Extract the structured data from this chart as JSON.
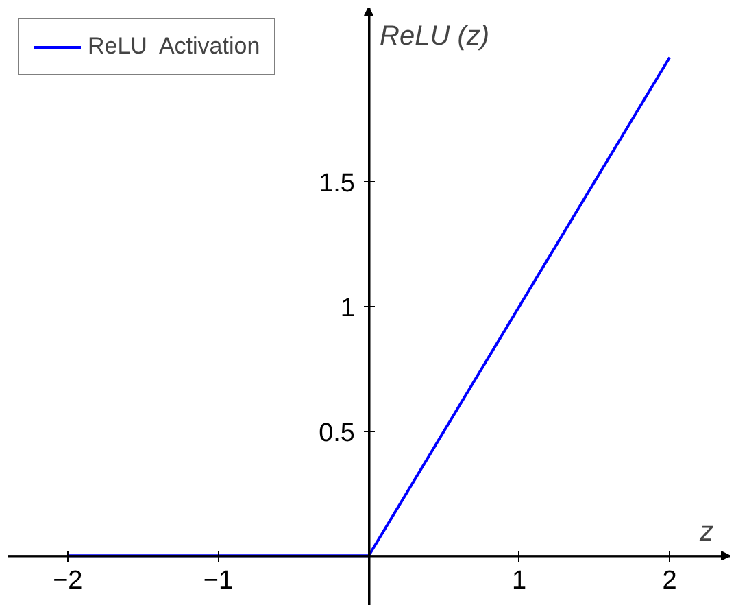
{
  "chart_data": {
    "type": "line",
    "xlabel": "z",
    "ylabel": "ReLU (z)",
    "x": [
      -2,
      0,
      2
    ],
    "series": [
      {
        "name": "ReLU  Activation",
        "color": "#0000ff",
        "values": [
          0,
          0,
          2
        ]
      }
    ],
    "xlim": [
      -2.4,
      2.4
    ],
    "ylim": [
      -0.2,
      2.2
    ],
    "xticks": [
      {
        "value": -2,
        "label": "−2"
      },
      {
        "value": -1,
        "label": "−1"
      },
      1,
      2
    ],
    "yticks": [
      0.5,
      1,
      1.5
    ],
    "grid": false,
    "legend": "top left",
    "marker": "none",
    "line_style": "solid"
  }
}
